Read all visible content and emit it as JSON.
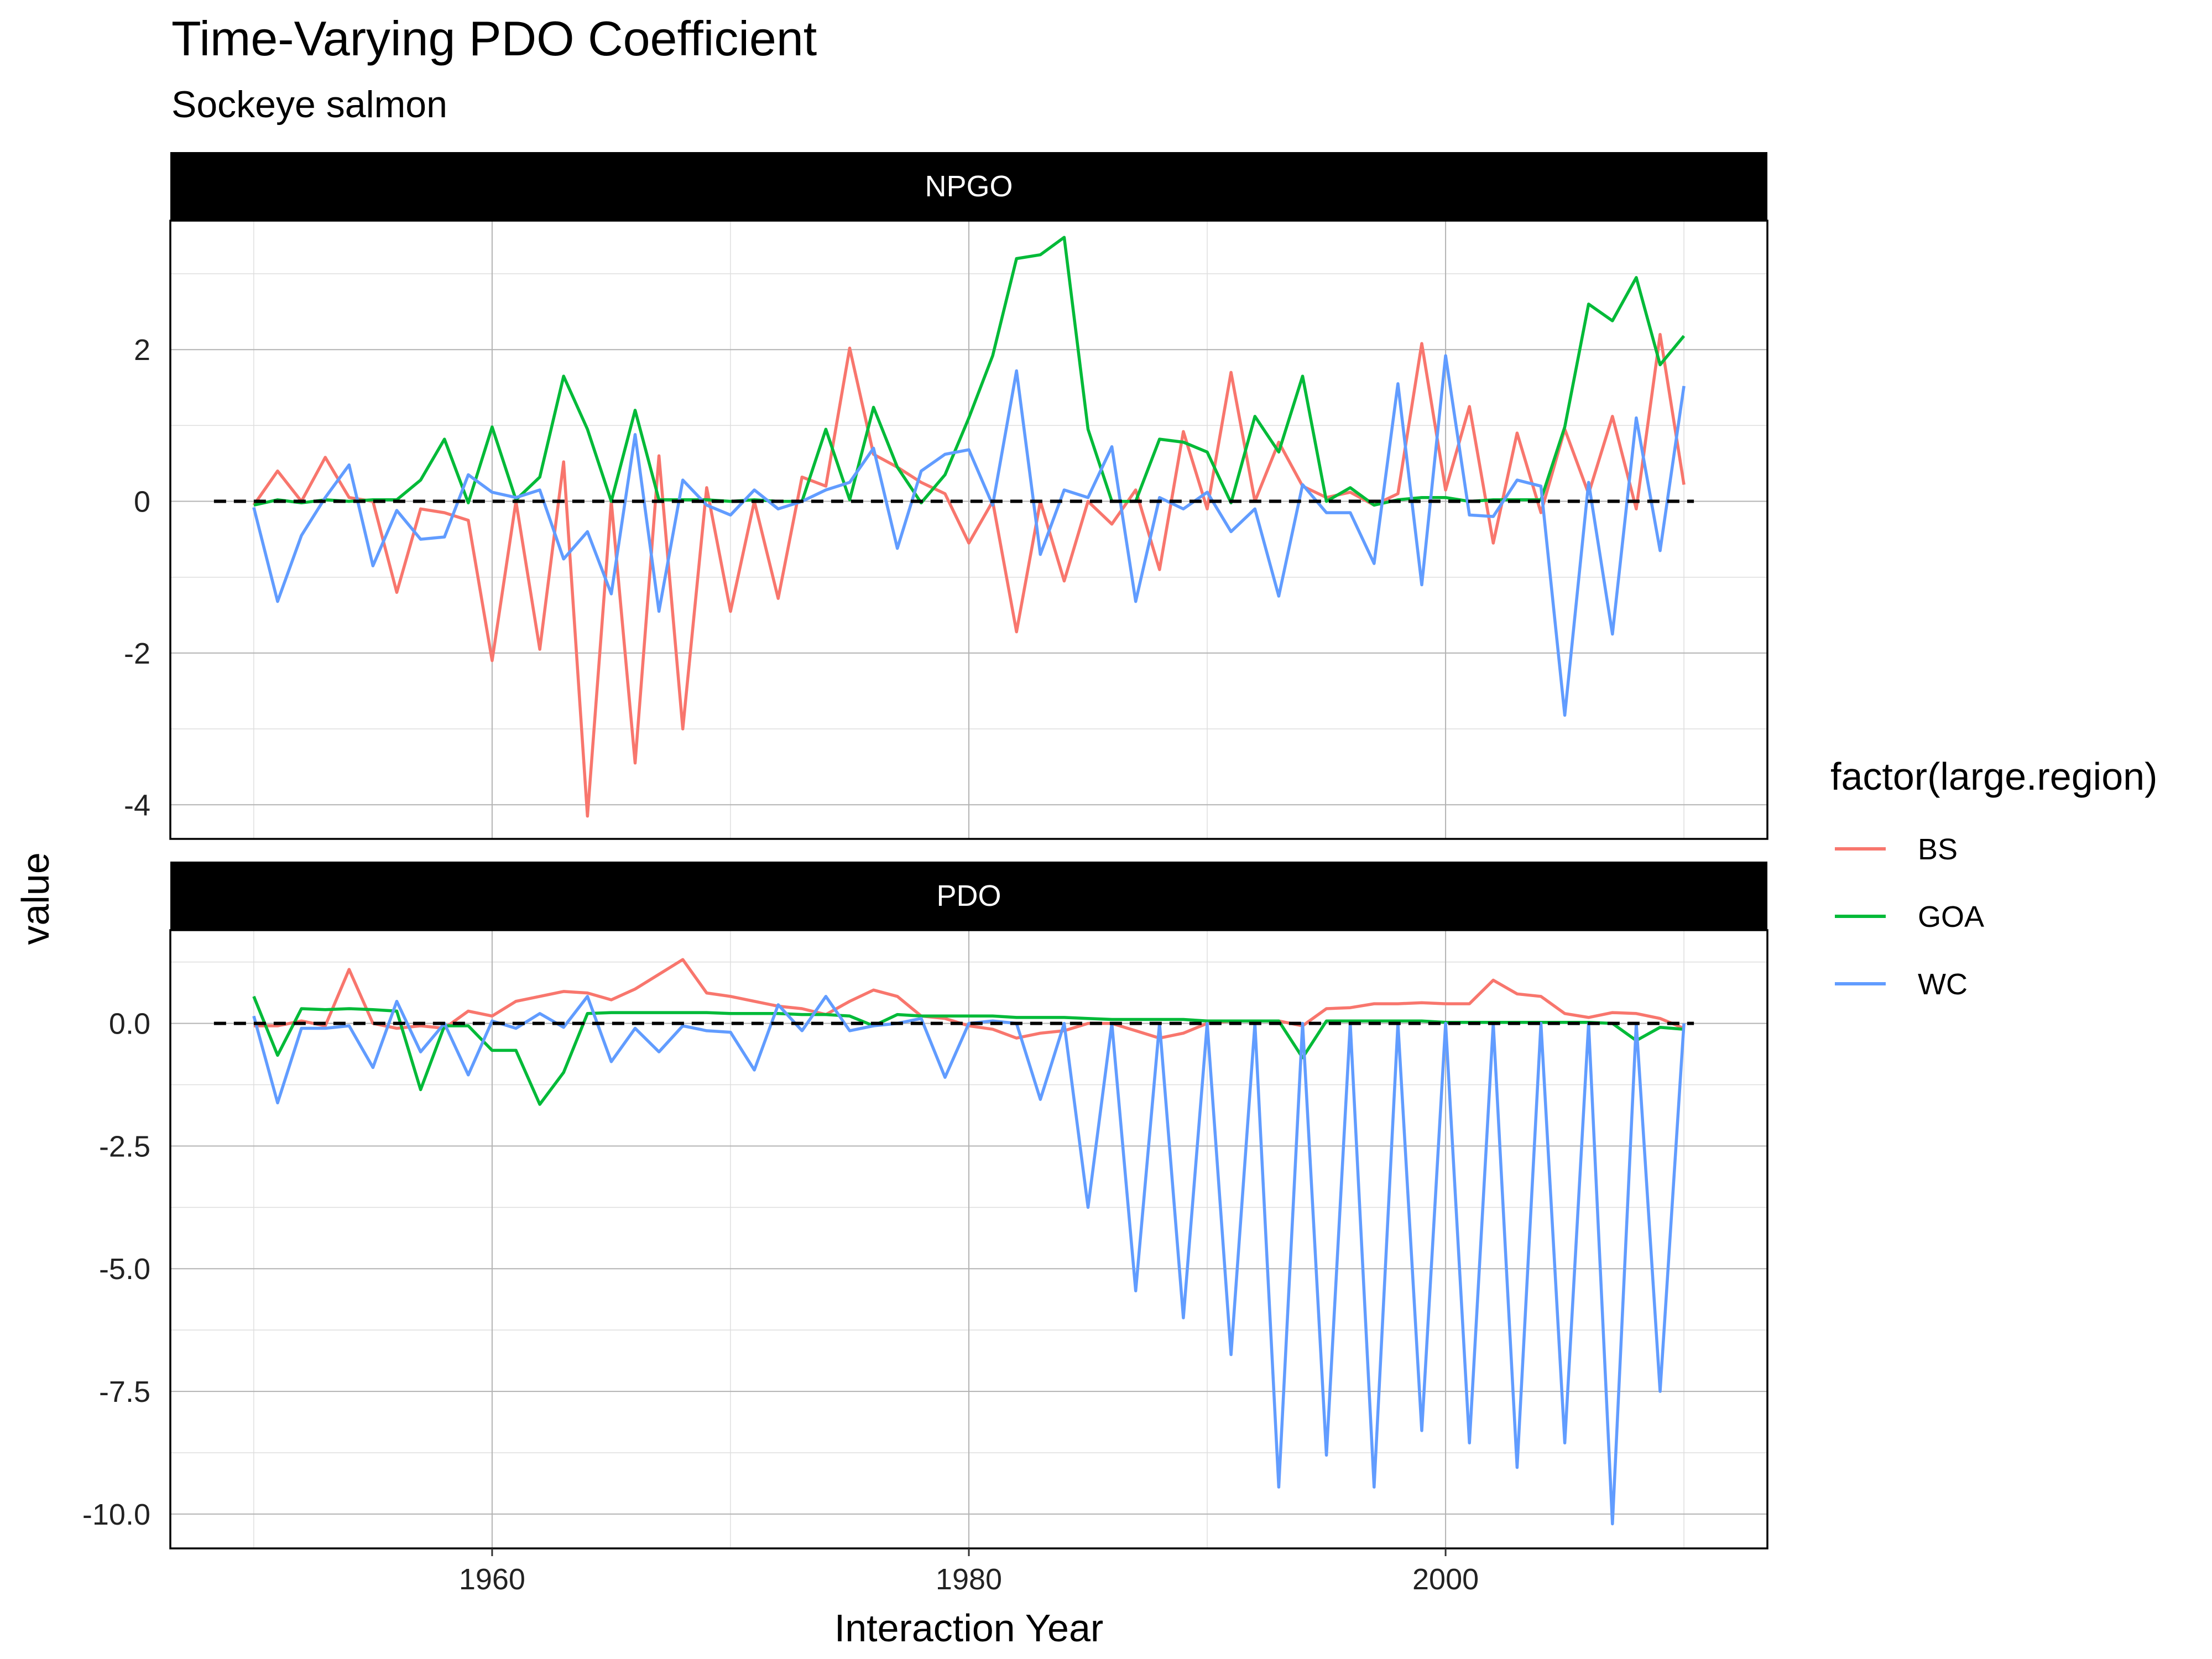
{
  "chart_data": {
    "type": "line",
    "title": "Time-Varying PDO Coefficient",
    "subtitle": "Sockeye salmon",
    "xlabel": "Interaction Year",
    "ylabel": "value",
    "xlim": [
      1946.5,
      2013.5
    ],
    "x_ticks": [
      1960,
      1980,
      2000
    ],
    "grid": true,
    "legend": {
      "title": "factor(large.region)",
      "position": "right",
      "entries": [
        {
          "name": "BS",
          "color": "#F8766D"
        },
        {
          "name": "GOA",
          "color": "#00BA38"
        },
        {
          "name": "WC",
          "color": "#619CFF"
        }
      ]
    },
    "reference_line": {
      "y": 0,
      "style": "dashed"
    },
    "x": [
      1950,
      1951,
      1952,
      1953,
      1954,
      1955,
      1956,
      1957,
      1958,
      1959,
      1960,
      1961,
      1962,
      1963,
      1964,
      1965,
      1966,
      1967,
      1968,
      1969,
      1970,
      1971,
      1972,
      1973,
      1974,
      1975,
      1976,
      1977,
      1978,
      1979,
      1980,
      1981,
      1982,
      1983,
      1984,
      1985,
      1986,
      1987,
      1988,
      1989,
      1990,
      1991,
      1992,
      1993,
      1994,
      1995,
      1996,
      1997,
      1998,
      1999,
      2000,
      2001,
      2002,
      2003,
      2004,
      2005,
      2006,
      2007,
      2008,
      2009,
      2010
    ],
    "panels": [
      {
        "name": "NPGO",
        "ylim": [
          -4.45,
          3.7
        ],
        "y_ticks": [
          -4,
          -2,
          0,
          2
        ],
        "y_tick_labels": [
          "-4",
          "-2",
          "0",
          "2"
        ],
        "series": [
          {
            "name": "BS",
            "values": [
              -0.05,
              0.4,
              0.0,
              0.58,
              0.05,
              0.0,
              -1.2,
              -0.1,
              -0.15,
              -0.25,
              -2.1,
              0.0,
              -1.95,
              0.52,
              -4.15,
              0.0,
              -3.45,
              0.6,
              -3.0,
              0.18,
              -1.45,
              0.0,
              -1.28,
              0.32,
              0.2,
              2.02,
              0.62,
              0.45,
              0.25,
              0.1,
              -0.55,
              0.0,
              -1.72,
              0.0,
              -1.05,
              0.0,
              -0.3,
              0.15,
              -0.9,
              0.92,
              -0.1,
              1.7,
              0.0,
              0.78,
              0.2,
              0.05,
              0.12,
              -0.05,
              0.1,
              2.08,
              0.15,
              1.25,
              -0.55,
              0.9,
              -0.15,
              0.95,
              0.1,
              1.12,
              -0.1,
              2.2,
              0.22
            ]
          },
          {
            "name": "GOA",
            "values": [
              -0.05,
              0.02,
              -0.02,
              0.02,
              0.0,
              0.02,
              0.02,
              0.28,
              0.82,
              -0.02,
              0.98,
              0.02,
              0.32,
              1.65,
              0.95,
              0.0,
              1.2,
              0.02,
              0.02,
              0.02,
              0.0,
              0.02,
              0.0,
              0.0,
              0.95,
              0.02,
              1.24,
              0.45,
              -0.02,
              0.35,
              1.1,
              1.92,
              3.2,
              3.25,
              3.48,
              0.95,
              0.0,
              0.0,
              0.82,
              0.78,
              0.65,
              -0.02,
              1.12,
              0.65,
              1.65,
              0.0,
              0.18,
              -0.05,
              0.02,
              0.05,
              0.05,
              0.0,
              0.02,
              0.02,
              0.02,
              0.98,
              2.6,
              2.38,
              2.95,
              1.8,
              2.18
            ]
          },
          {
            "name": "WC",
            "values": [
              -0.08,
              -1.32,
              -0.45,
              0.05,
              0.48,
              -0.85,
              -0.12,
              -0.5,
              -0.47,
              0.35,
              0.12,
              0.05,
              0.15,
              -0.76,
              -0.4,
              -1.22,
              0.88,
              -1.45,
              0.28,
              -0.05,
              -0.18,
              0.15,
              -0.1,
              0.0,
              0.15,
              0.25,
              0.7,
              -0.62,
              0.4,
              0.62,
              0.68,
              -0.05,
              1.72,
              -0.7,
              0.15,
              0.05,
              0.72,
              -1.32,
              0.05,
              -0.1,
              0.12,
              -0.4,
              -0.1,
              -1.25,
              0.22,
              -0.15,
              -0.15,
              -0.82,
              1.55,
              -1.1,
              1.92,
              -0.18,
              -0.2,
              0.28,
              0.2,
              -2.82,
              0.25,
              -1.75,
              1.1,
              -0.65,
              1.52
            ]
          }
        ]
      },
      {
        "name": "PDO",
        "ylim": [
          -10.7,
          1.9
        ],
        "y_ticks": [
          -10,
          -7.5,
          -5,
          -2.5,
          0
        ],
        "y_tick_labels": [
          "-10.0",
          "-7.5",
          "-5.0",
          "-2.5",
          "0.0"
        ],
        "series": [
          {
            "name": "BS",
            "values": [
              -0.05,
              -0.05,
              0.05,
              -0.05,
              1.1,
              0.0,
              -0.1,
              -0.05,
              -0.1,
              0.25,
              0.15,
              0.45,
              0.55,
              0.65,
              0.62,
              0.48,
              0.7,
              1.0,
              1.3,
              0.62,
              0.55,
              0.45,
              0.35,
              0.3,
              0.18,
              0.45,
              0.68,
              0.55,
              0.15,
              0.1,
              -0.05,
              -0.12,
              -0.3,
              -0.2,
              -0.15,
              0.0,
              0.0,
              -0.15,
              -0.3,
              -0.2,
              0.0,
              0.05,
              0.05,
              0.05,
              -0.05,
              0.3,
              0.32,
              0.4,
              0.4,
              0.42,
              0.4,
              0.4,
              0.88,
              0.6,
              0.55,
              0.2,
              0.12,
              0.22,
              0.2,
              0.1,
              -0.1
            ]
          },
          {
            "name": "GOA",
            "values": [
              0.55,
              -0.65,
              0.3,
              0.28,
              0.3,
              0.28,
              0.25,
              -1.35,
              -0.05,
              -0.05,
              -0.55,
              -0.55,
              -1.65,
              -1.0,
              0.2,
              0.22,
              0.22,
              0.22,
              0.22,
              0.22,
              0.2,
              0.2,
              0.2,
              0.18,
              0.18,
              0.15,
              -0.05,
              0.18,
              0.15,
              0.15,
              0.15,
              0.15,
              0.12,
              0.12,
              0.12,
              0.1,
              0.08,
              0.08,
              0.08,
              0.08,
              0.05,
              0.05,
              0.05,
              0.05,
              -0.7,
              0.05,
              0.05,
              0.05,
              0.05,
              0.05,
              0.02,
              0.02,
              0.02,
              0.02,
              0.02,
              0.02,
              0.02,
              0.0,
              -0.35,
              -0.08,
              -0.12
            ]
          },
          {
            "name": "WC",
            "values": [
              0.15,
              -1.62,
              -0.1,
              -0.1,
              -0.05,
              -0.9,
              0.45,
              -0.58,
              0.0,
              -1.05,
              0.05,
              -0.1,
              0.2,
              -0.08,
              0.55,
              -0.78,
              -0.1,
              -0.58,
              -0.05,
              -0.15,
              -0.18,
              -0.95,
              0.38,
              -0.15,
              0.55,
              -0.15,
              -0.05,
              0.0,
              0.1,
              -1.1,
              0.0,
              0.05,
              0.0,
              -1.55,
              0.0,
              -3.75,
              0.0,
              -5.45,
              0.0,
              -6.0,
              0.0,
              -6.75,
              0.0,
              -9.45,
              0.0,
              -8.8,
              0.0,
              -9.45,
              0.0,
              -8.3,
              0.0,
              -8.55,
              0.0,
              -9.05,
              0.0,
              -8.55,
              0.0,
              -10.2,
              0.0,
              -7.5,
              0.0
            ]
          }
        ]
      }
    ]
  }
}
